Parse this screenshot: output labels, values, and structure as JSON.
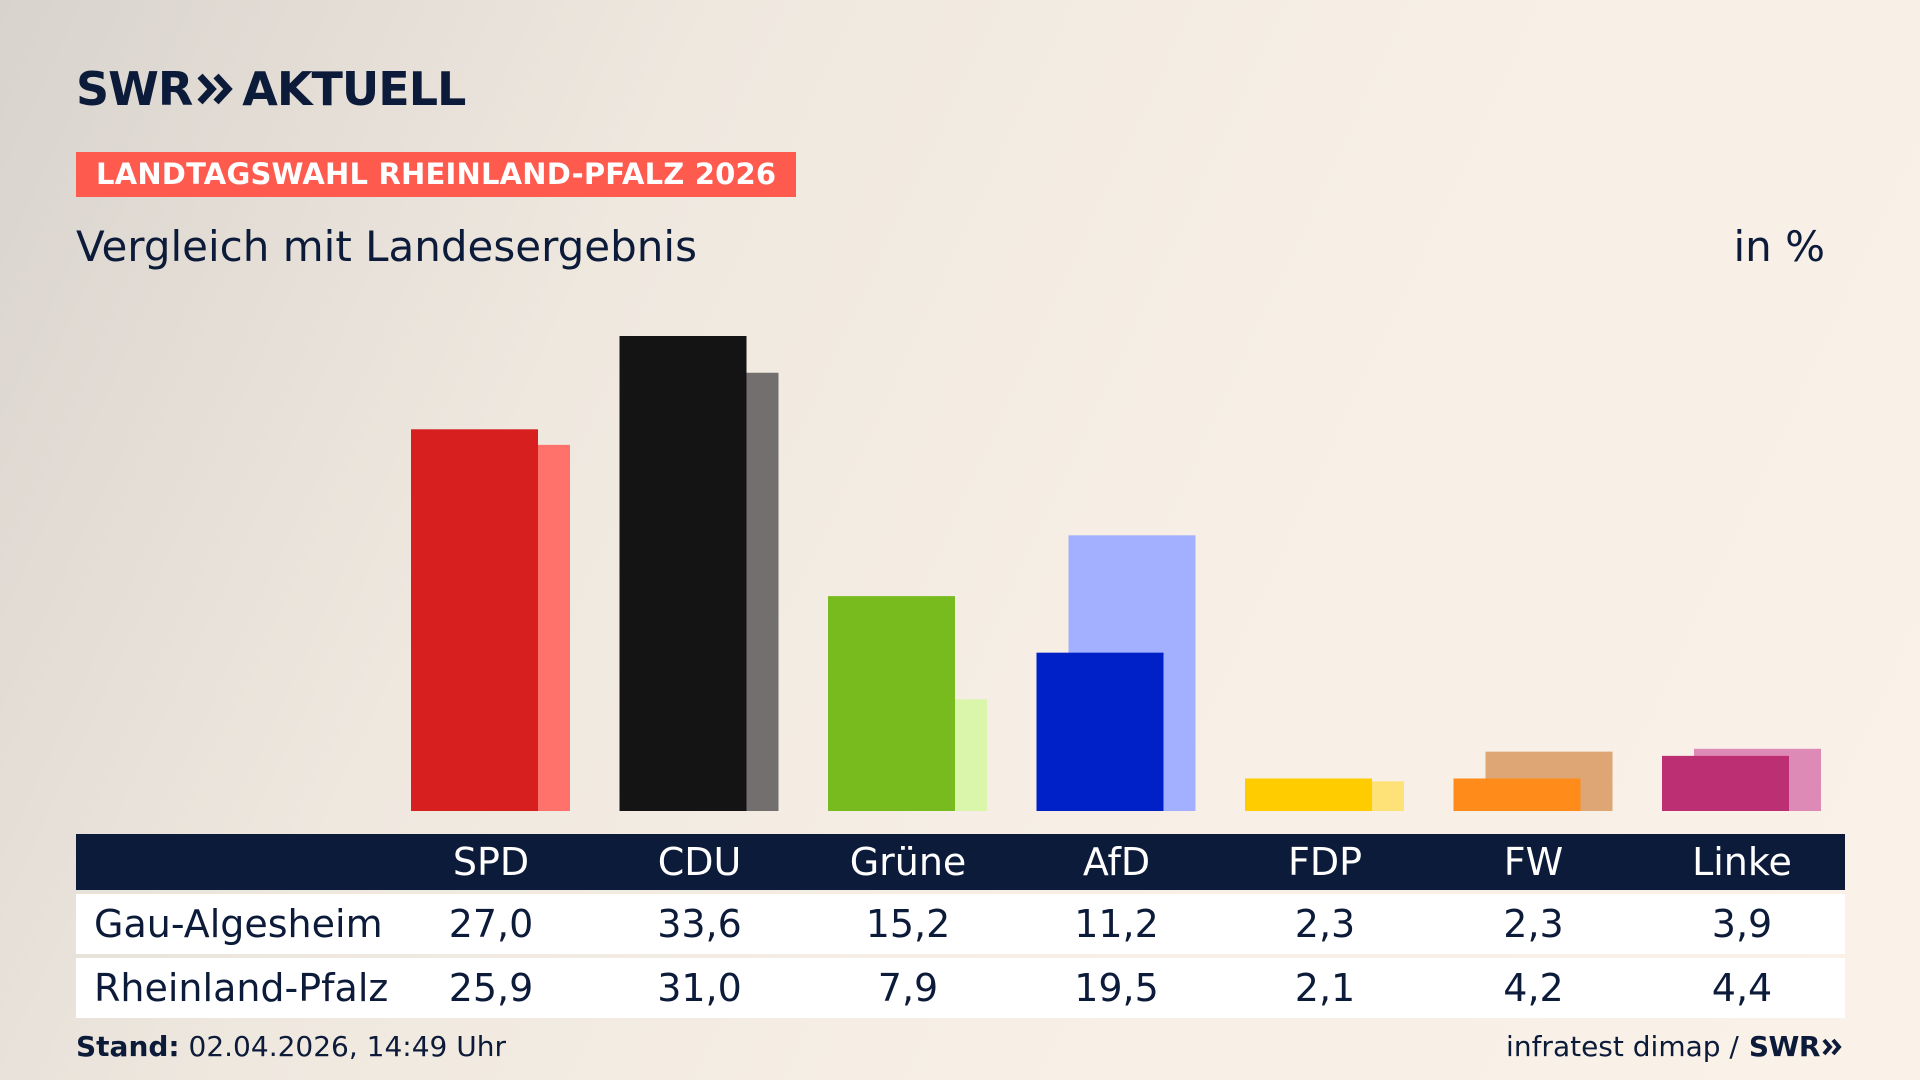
{
  "header": {
    "logo_left": "SWR",
    "logo_right": "AKTUELL",
    "badge": "LANDTAGSWAHL RHEINLAND-PFALZ 2026",
    "subtitle": "Vergleich mit Landesergebnis",
    "unit": "in %"
  },
  "colors": {
    "navy": "#0d1b3a",
    "badge_bg": "#ff5a4e"
  },
  "chart_data": {
    "type": "bar",
    "categories": [
      "SPD",
      "CDU",
      "Grüne",
      "AfD",
      "FDP",
      "FW",
      "Linke"
    ],
    "series": [
      {
        "name": "Gau-Algesheim",
        "values": [
          27.0,
          33.6,
          15.2,
          11.2,
          2.3,
          2.3,
          3.9
        ],
        "colors": [
          "#d71f1f",
          "#141414",
          "#78bb1e",
          "#0020c8",
          "#ffcc00",
          "#ff8b1a",
          "#bc2f72"
        ]
      },
      {
        "name": "Rheinland-Pfalz",
        "values": [
          25.9,
          31.0,
          7.9,
          19.5,
          2.1,
          4.2,
          4.4
        ],
        "colors": [
          "#ff726c",
          "#726f6e",
          "#d9f6ab",
          "#a2b0ff",
          "#ffe277",
          "#dda674",
          "#de8ab7"
        ]
      }
    ],
    "ylim": [
      0,
      33.6
    ]
  },
  "table": {
    "rows": [
      {
        "label": "Gau-Algesheim",
        "values": [
          "27,0",
          "33,6",
          "15,2",
          "11,2",
          "2,3",
          "2,3",
          "3,9"
        ]
      },
      {
        "label": "Rheinland-Pfalz",
        "values": [
          "25,9",
          "31,0",
          "7,9",
          "19,5",
          "2,1",
          "4,2",
          "4,4"
        ]
      }
    ]
  },
  "footer": {
    "stand_label": "Stand:",
    "stand_value": "02.04.2026, 14:49 Uhr",
    "source": "infratest dimap /",
    "source_logo": "SWR"
  }
}
